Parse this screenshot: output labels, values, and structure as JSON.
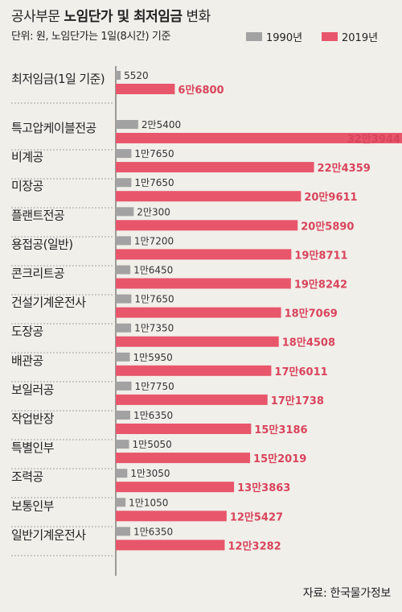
{
  "title": {
    "normal": "공사부문 ",
    "bold": "노임단가 및 최저임금",
    "suffix": " 변화"
  },
  "unit_note": "단위: 원, 노임단가는 1일(8시간) 기준",
  "source": "자료: 한국물가정보",
  "colors": {
    "s1990": "#a2a2a2",
    "s2019": "#e8566c",
    "label2019": "#d9445c",
    "background": "#f1efea"
  },
  "chart_data": {
    "type": "bar",
    "orientation": "horizontal",
    "categories": [
      "최저임금(1일 기준)",
      "특고압케이블전공",
      "비계공",
      "미장공",
      "플랜트전공",
      "용접공(일반)",
      "콘크리트공",
      "건설기계운전사",
      "도장공",
      "배관공",
      "보일러공",
      "작업반장",
      "특별인부",
      "조력공",
      "보통인부",
      "일반기계운전사"
    ],
    "series": [
      {
        "name": "1990년",
        "values": [
          5520,
          25400,
          17650,
          17650,
          20300,
          17200,
          16450,
          17650,
          17350,
          15950,
          17750,
          16350,
          15050,
          13050,
          11050,
          16350
        ],
        "labels": [
          "5520",
          "2만5400",
          "1만7650",
          "1만7650",
          "2만300",
          "1만7200",
          "1만6450",
          "1만7650",
          "1만7350",
          "1만5950",
          "1만7750",
          "1만6350",
          "1만5050",
          "1만3050",
          "1만1050",
          "1만6350"
        ]
      },
      {
        "name": "2019년",
        "values": [
          66800,
          323944,
          224359,
          209611,
          205890,
          198711,
          198242,
          187069,
          184508,
          176011,
          171738,
          153186,
          152019,
          133863,
          125427,
          123282
        ],
        "labels": [
          "6만6800",
          "32만3944",
          "22만4359",
          "20만9611",
          "20만5890",
          "19만8711",
          "19만8242",
          "18만7069",
          "18만4508",
          "17만6011",
          "17만1738",
          "15만3186",
          "15만2019",
          "13만3863",
          "12만5427",
          "12만3282"
        ]
      }
    ]
  }
}
